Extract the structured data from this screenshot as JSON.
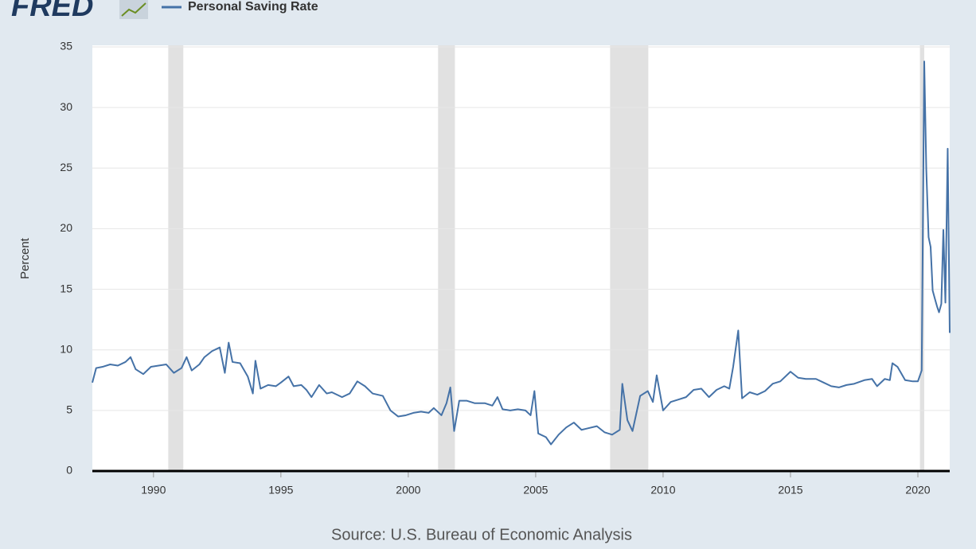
{
  "chart_data": {
    "type": "line",
    "logo": "FRED",
    "y_label": "Percent",
    "source": "Source: U.S. Bureau of Economic Analysis",
    "xlim": [
      1987.6,
      2021.25
    ],
    "xticks": [
      1990,
      1995,
      2000,
      2005,
      2010,
      2015,
      2020
    ],
    "ylim": [
      0,
      35
    ],
    "yticks": [
      0,
      5,
      10,
      15,
      20,
      25,
      30,
      35
    ],
    "grid": true,
    "recession_color": "#e1e1e1",
    "recessions": [
      [
        1990.58,
        1991.17
      ],
      [
        2001.17,
        2001.83
      ],
      [
        2007.92,
        2009.42
      ],
      [
        2020.08,
        2020.25
      ]
    ],
    "x": [
      1987.6,
      1987.75,
      1988.0,
      1988.3,
      1988.6,
      1988.9,
      1989.1,
      1989.3,
      1989.6,
      1989.9,
      1990.2,
      1990.5,
      1990.8,
      1991.1,
      1991.3,
      1991.5,
      1991.8,
      1992.0,
      1992.3,
      1992.6,
      1992.8,
      1992.95,
      1993.1,
      1993.4,
      1993.7,
      1993.9,
      1994.0,
      1994.2,
      1994.5,
      1994.8,
      1995.0,
      1995.3,
      1995.5,
      1995.8,
      1996.0,
      1996.2,
      1996.5,
      1996.8,
      1997.0,
      1997.4,
      1997.7,
      1998.0,
      1998.3,
      1998.6,
      1999.0,
      1999.3,
      1999.6,
      1999.9,
      2000.2,
      2000.5,
      2000.8,
      2001.0,
      2001.3,
      2001.5,
      2001.65,
      2001.8,
      2002.0,
      2002.3,
      2002.6,
      2003.0,
      2003.3,
      2003.5,
      2003.7,
      2004.0,
      2004.3,
      2004.6,
      2004.8,
      2004.95,
      2005.1,
      2005.4,
      2005.6,
      2005.9,
      2006.2,
      2006.5,
      2006.8,
      2007.0,
      2007.4,
      2007.7,
      2008.0,
      2008.3,
      2008.4,
      2008.6,
      2008.8,
      2009.1,
      2009.4,
      2009.6,
      2009.75,
      2010.0,
      2010.3,
      2010.6,
      2010.9,
      2011.2,
      2011.5,
      2011.8,
      2012.1,
      2012.4,
      2012.6,
      2012.75,
      2012.95,
      2013.1,
      2013.4,
      2013.7,
      2014.0,
      2014.3,
      2014.6,
      2015.0,
      2015.3,
      2015.6,
      2016.0,
      2016.3,
      2016.6,
      2016.9,
      2017.2,
      2017.5,
      2017.9,
      2018.2,
      2018.4,
      2018.7,
      2018.9,
      2019.0,
      2019.2,
      2019.5,
      2019.8,
      2020.0,
      2020.15,
      2020.25,
      2020.33,
      2020.42,
      2020.5,
      2020.58,
      2020.67,
      2020.75,
      2020.83,
      2020.92,
      2021.0,
      2021.08,
      2021.17,
      2021.25
    ],
    "series": [
      {
        "name": "Personal Saving Rate",
        "color": "#4572a7",
        "values": [
          7.3,
          8.5,
          8.6,
          8.8,
          8.7,
          9.0,
          9.4,
          8.4,
          8.0,
          8.6,
          8.7,
          8.8,
          8.1,
          8.5,
          9.4,
          8.3,
          8.8,
          9.4,
          9.9,
          10.2,
          8.1,
          10.6,
          9.0,
          8.9,
          7.8,
          6.4,
          9.1,
          6.8,
          7.1,
          7.0,
          7.3,
          7.8,
          7.0,
          7.1,
          6.7,
          6.1,
          7.1,
          6.4,
          6.5,
          6.1,
          6.4,
          7.4,
          7.0,
          6.4,
          6.2,
          5.0,
          4.5,
          4.6,
          4.8,
          4.9,
          4.8,
          5.2,
          4.6,
          5.6,
          6.9,
          3.3,
          5.8,
          5.8,
          5.6,
          5.6,
          5.4,
          6.1,
          5.1,
          5.0,
          5.1,
          5.0,
          4.6,
          6.6,
          3.1,
          2.8,
          2.2,
          3.0,
          3.6,
          4.0,
          3.4,
          3.5,
          3.7,
          3.2,
          3.0,
          3.4,
          7.2,
          4.2,
          3.3,
          6.2,
          6.6,
          5.7,
          7.9,
          5.0,
          5.7,
          5.9,
          6.1,
          6.7,
          6.8,
          6.1,
          6.7,
          7.0,
          6.8,
          8.6,
          11.6,
          6.0,
          6.5,
          6.3,
          6.6,
          7.2,
          7.4,
          8.2,
          7.7,
          7.6,
          7.6,
          7.3,
          7.0,
          6.9,
          7.1,
          7.2,
          7.5,
          7.6,
          7.0,
          7.6,
          7.5,
          8.9,
          8.6,
          7.5,
          7.4,
          7.4,
          8.3,
          33.8,
          24.9,
          19.3,
          18.5,
          14.9,
          14.2,
          13.6,
          13.1,
          13.8,
          19.9,
          13.9,
          26.6,
          11.4
        ]
      }
    ]
  }
}
